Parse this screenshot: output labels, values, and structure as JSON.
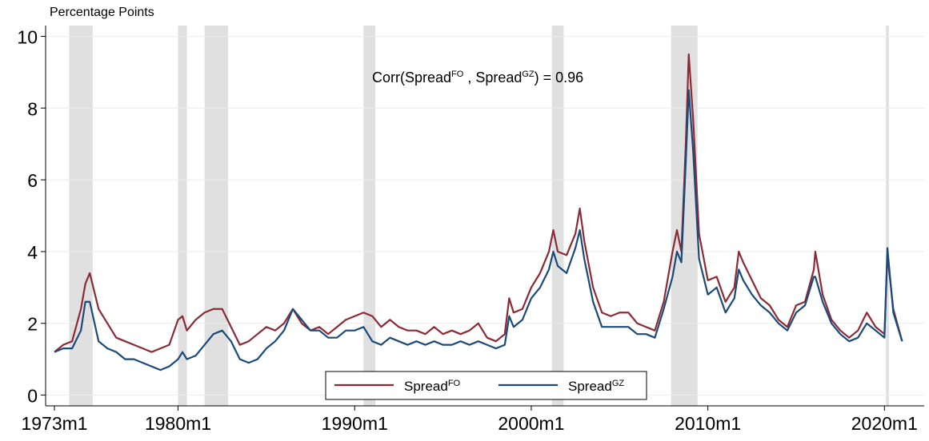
{
  "chart_data": {
    "type": "line",
    "y_axis_label": "Percentage Points",
    "annotation": [
      {
        "text": "Corr(Spread"
      },
      {
        "text": "FO",
        "sup": true
      },
      {
        "text": " , Spread"
      },
      {
        "text": "GZ",
        "sup": true
      },
      {
        "text": ") = 0.96"
      }
    ],
    "x": [
      "1973m1",
      "1973m7",
      "1974m1",
      "1974m7",
      "1974m10",
      "1975m1",
      "1975m7",
      "1976m1",
      "1976m7",
      "1977m1",
      "1977m7",
      "1978m1",
      "1978m7",
      "1979m1",
      "1979m7",
      "1980m1",
      "1980m4",
      "1980m7",
      "1981m1",
      "1981m7",
      "1982m1",
      "1982m7",
      "1983m1",
      "1983m7",
      "1984m1",
      "1984m7",
      "1985m1",
      "1985m7",
      "1986m1",
      "1986m7",
      "1987m1",
      "1987m7",
      "1988m1",
      "1988m7",
      "1989m1",
      "1989m7",
      "1990m1",
      "1990m7",
      "1991m1",
      "1991m7",
      "1992m1",
      "1992m7",
      "1993m1",
      "1993m7",
      "1994m1",
      "1994m7",
      "1995m1",
      "1995m7",
      "1996m1",
      "1996m7",
      "1997m1",
      "1997m7",
      "1998m1",
      "1998m7",
      "1998m10",
      "1999m1",
      "1999m7",
      "2000m1",
      "2000m7",
      "2001m1",
      "2001m4",
      "2001m7",
      "2002m1",
      "2002m7",
      "2002m10",
      "2003m1",
      "2003m7",
      "2004m1",
      "2004m7",
      "2005m1",
      "2005m7",
      "2006m1",
      "2006m7",
      "2007m1",
      "2007m7",
      "2008m1",
      "2008m4",
      "2008m7",
      "2008m10",
      "2008m12",
      "2009m3",
      "2009m7",
      "2010m1",
      "2010m7",
      "2011m1",
      "2011m7",
      "2011m10",
      "2012m1",
      "2012m7",
      "2013m1",
      "2013m7",
      "2014m1",
      "2014m7",
      "2015m1",
      "2015m7",
      "2016m1",
      "2016m2",
      "2016m7",
      "2017m1",
      "2017m7",
      "2018m1",
      "2018m7",
      "2019m1",
      "2019m7",
      "2020m1",
      "2020m3",
      "2020m7",
      "2021m1"
    ],
    "series": [
      {
        "name": "Spread",
        "superscript": "FO",
        "color": "#8b2a35",
        "values": [
          1.2,
          1.4,
          1.5,
          2.4,
          3.1,
          3.4,
          2.4,
          2.0,
          1.6,
          1.5,
          1.4,
          1.3,
          1.2,
          1.3,
          1.4,
          2.1,
          2.2,
          1.8,
          2.1,
          2.3,
          2.4,
          2.4,
          1.9,
          1.4,
          1.5,
          1.7,
          1.9,
          1.8,
          2.0,
          2.4,
          2.0,
          1.8,
          1.9,
          1.7,
          1.9,
          2.1,
          2.2,
          2.3,
          2.2,
          1.9,
          2.1,
          1.9,
          1.8,
          1.8,
          1.7,
          1.9,
          1.7,
          1.8,
          1.7,
          1.8,
          2.0,
          1.6,
          1.5,
          1.7,
          2.7,
          2.3,
          2.4,
          3.0,
          3.4,
          4.0,
          4.6,
          4.0,
          3.9,
          4.5,
          5.2,
          4.3,
          3.0,
          2.3,
          2.2,
          2.3,
          2.3,
          2.0,
          1.9,
          1.8,
          2.6,
          4.0,
          4.6,
          4.0,
          7.0,
          9.5,
          7.7,
          4.5,
          3.2,
          3.3,
          2.6,
          3.0,
          4.0,
          3.7,
          3.2,
          2.7,
          2.5,
          2.1,
          1.9,
          2.5,
          2.6,
          3.5,
          4.0,
          2.8,
          2.1,
          1.8,
          1.6,
          1.8,
          2.3,
          1.9,
          1.7,
          3.9,
          2.4,
          1.5
        ]
      },
      {
        "name": "Spread",
        "superscript": "GZ",
        "color": "#1a4a7a",
        "values": [
          1.2,
          1.3,
          1.3,
          1.8,
          2.6,
          2.6,
          1.5,
          1.3,
          1.2,
          1.0,
          1.0,
          0.9,
          0.8,
          0.7,
          0.8,
          1.0,
          1.2,
          1.0,
          1.1,
          1.4,
          1.7,
          1.8,
          1.5,
          1.0,
          0.9,
          1.0,
          1.3,
          1.5,
          1.8,
          2.4,
          2.1,
          1.8,
          1.8,
          1.6,
          1.6,
          1.8,
          1.8,
          1.9,
          1.5,
          1.4,
          1.6,
          1.5,
          1.4,
          1.5,
          1.4,
          1.5,
          1.4,
          1.4,
          1.5,
          1.4,
          1.5,
          1.4,
          1.3,
          1.4,
          2.2,
          1.9,
          2.1,
          2.7,
          3.0,
          3.5,
          4.0,
          3.6,
          3.4,
          4.1,
          4.6,
          3.8,
          2.6,
          1.9,
          1.9,
          1.9,
          1.9,
          1.7,
          1.7,
          1.6,
          2.4,
          3.3,
          4.0,
          3.7,
          6.5,
          8.5,
          6.8,
          3.8,
          2.8,
          3.0,
          2.3,
          2.7,
          3.5,
          3.2,
          2.8,
          2.5,
          2.3,
          2.0,
          1.8,
          2.3,
          2.5,
          3.3,
          3.3,
          2.6,
          2.0,
          1.7,
          1.5,
          1.6,
          2.0,
          1.8,
          1.6,
          4.1,
          2.3,
          1.5
        ]
      }
    ],
    "shaded_periods": [
      {
        "start": "1973m11",
        "end": "1975m3"
      },
      {
        "start": "1980m1",
        "end": "1980m7"
      },
      {
        "start": "1981m7",
        "end": "1982m11"
      },
      {
        "start": "1990m7",
        "end": "1991m3"
      },
      {
        "start": "2001m3",
        "end": "2001m11"
      },
      {
        "start": "2007m12",
        "end": "2009m6"
      },
      {
        "start": "2020m2",
        "end": "2020m4"
      }
    ],
    "shade_color": "#e0e0e0",
    "xlim": [
      "1972m7",
      "2022m4"
    ],
    "xticks": [
      "1973m1",
      "1980m1",
      "1990m1",
      "2000m1",
      "2010m1",
      "2020m1"
    ],
    "ylim": [
      -0.3,
      10.3
    ],
    "yticks": [
      0,
      2,
      4,
      6,
      8,
      10
    ],
    "grid": true
  }
}
